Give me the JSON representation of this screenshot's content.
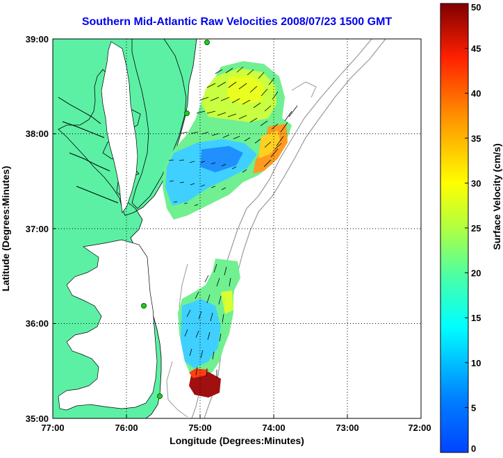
{
  "title": "Southern Mid-Atlantic Raw Velocities 2008/07/23 1500 GMT",
  "axes": {
    "xlabel": "Longitude (Degrees:Minutes)",
    "ylabel": "Latitude (Degrees:Minutes)",
    "x_ticks": [
      "77:00",
      "76:00",
      "75:00",
      "74:00",
      "73:00",
      "72:00"
    ],
    "y_ticks": [
      "39:00",
      "38:00",
      "37:00",
      "36:00",
      "35:00"
    ],
    "grid": true
  },
  "colorbar": {
    "label": "Surface Velocity (cm/s)",
    "min": 0,
    "max": 50,
    "ticks": [
      "0",
      "5",
      "10",
      "15",
      "20",
      "25",
      "30",
      "35",
      "40",
      "45",
      "50"
    ],
    "colormap": "jet"
  },
  "colors": {
    "land": "#5cf0a5",
    "title": "#0000ee",
    "coast": "#000000",
    "bathymetry": "#999999",
    "station_marker": "#22cc22"
  }
}
